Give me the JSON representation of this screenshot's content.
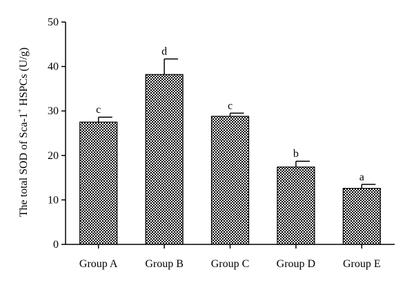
{
  "chart_data": {
    "type": "bar",
    "ylabel_main": "The total SOD of Sca-1",
    "ylabel_sup": "+",
    "ylabel_tail": " HSPCs (U/g)",
    "xlabel": "",
    "ylim": [
      0,
      50
    ],
    "yticks": [
      0,
      10,
      20,
      30,
      40,
      50
    ],
    "categories": [
      "Group A",
      "Group B",
      "Group C",
      "Group D",
      "Group E"
    ],
    "values": [
      27.5,
      38.2,
      28.8,
      17.4,
      12.6
    ],
    "errors": [
      1.1,
      3.5,
      0.7,
      1.3,
      0.9
    ],
    "significance_letters": [
      "c",
      "d",
      "c",
      "b",
      "a"
    ],
    "bar_fill": "checkered black and white",
    "grid": false,
    "legend": "none"
  }
}
